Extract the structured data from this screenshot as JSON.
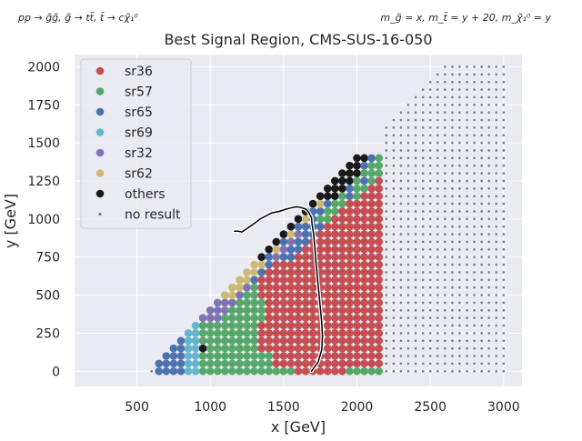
{
  "chart_data": {
    "type": "scatter",
    "title": "Best Signal Region, CMS-SUS-16-050",
    "process_label": "pp → g̃g̃, g̃ → tt̃, t̃ → cχ̃₁⁰",
    "mass_label": "m_g̃ = x, m_t̃ = y + 20, m_χ̃₁⁰ = y",
    "xlabel": "x [GeV]",
    "ylabel": "y [GeV]",
    "xlim": [
      75,
      3125
    ],
    "ylim": [
      -100,
      2080
    ],
    "xticks": [
      500,
      1000,
      1500,
      2000,
      2500,
      3000
    ],
    "yticks": [
      0,
      250,
      500,
      750,
      1000,
      1250,
      1500,
      1750,
      2000
    ],
    "grid": true,
    "legend_position": "top-left",
    "colors": {
      "sr36": "#c44e52",
      "sr57": "#55a868",
      "sr65": "#4c72b0",
      "sr69": "#64b5cd",
      "sr32": "#8172b2",
      "sr62": "#ccb974",
      "others": "#1a1a1a",
      "no result": "#7a7a7a"
    },
    "series": [
      {
        "name": "sr36",
        "marker": "dot"
      },
      {
        "name": "sr57",
        "marker": "dot"
      },
      {
        "name": "sr65",
        "marker": "dot"
      },
      {
        "name": "sr69",
        "marker": "dot"
      },
      {
        "name": "sr32",
        "marker": "dot"
      },
      {
        "name": "sr62",
        "marker": "dot"
      },
      {
        "name": "others",
        "marker": "dot"
      },
      {
        "name": "no result",
        "marker": "small-dot"
      }
    ],
    "grid_points": {
      "scanned_x_range": [
        650,
        2150
      ],
      "scanned_step": 50,
      "background_x_range": [
        200,
        3000
      ],
      "background_y_range": [
        0,
        2000
      ],
      "background_step": 50,
      "diagonal_offset": 625
    },
    "exclusion_contour": [
      [
        1690,
        0
      ],
      [
        1705,
        20
      ],
      [
        1735,
        60
      ],
      [
        1760,
        140
      ],
      [
        1765,
        230
      ],
      [
        1760,
        320
      ],
      [
        1750,
        420
      ],
      [
        1740,
        520
      ],
      [
        1730,
        620
      ],
      [
        1720,
        720
      ],
      [
        1712,
        820
      ],
      [
        1705,
        900
      ],
      [
        1695,
        960
      ],
      [
        1690,
        1010
      ],
      [
        1670,
        1045
      ],
      [
        1650,
        1065
      ],
      [
        1620,
        1075
      ],
      [
        1590,
        1080
      ],
      [
        1560,
        1075
      ],
      [
        1520,
        1065
      ],
      [
        1470,
        1050
      ],
      [
        1420,
        1040
      ],
      [
        1380,
        1020
      ],
      [
        1340,
        1000
      ],
      [
        1300,
        970
      ],
      [
        1255,
        940
      ],
      [
        1215,
        915
      ],
      [
        1190,
        920
      ],
      [
        1165,
        920
      ]
    ]
  }
}
